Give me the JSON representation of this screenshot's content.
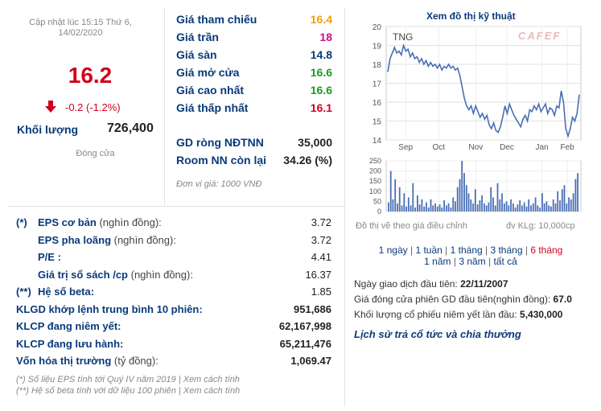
{
  "summary": {
    "updated_label": "Cập nhật lúc 15:15 Thứ 6,",
    "updated_date": "14/02/2020",
    "price": "16.2",
    "change": "-0.2 (-1.2%)",
    "volume_label": "Khối lượng",
    "volume_value": "726,400",
    "status": "Đóng cửa",
    "colors": {
      "price": "#d0021b",
      "down": "#d0021b"
    }
  },
  "prices": {
    "rows": [
      {
        "label": "Giá tham chiếu",
        "value": "16.4",
        "color": "#f39c12"
      },
      {
        "label": "Giá trần",
        "value": "18",
        "color": "#c71585"
      },
      {
        "label": "Giá sàn",
        "value": "14.8",
        "color": "#0a3a7a"
      },
      {
        "label": "Giá mở cửa",
        "value": "16.6",
        "color": "#1a9c1a"
      },
      {
        "label": "Giá cao nhất",
        "value": "16.6",
        "color": "#1a9c1a"
      },
      {
        "label": "Giá thấp nhất",
        "value": "16.1",
        "color": "#d0021b"
      }
    ],
    "foreign": [
      {
        "label": "GD ròng NĐTNN",
        "value": "35,000"
      },
      {
        "label": "Room NN còn lại",
        "value": "34.26 (%)"
      }
    ],
    "unit_note": "Đơn vị giá: 1000 VNĐ"
  },
  "fundamentals": {
    "rows": [
      {
        "prefix": "(*)",
        "label": "EPS cơ bản",
        "suffix": " (nghìn đồng):",
        "value": "3.72",
        "indent": 1,
        "bold": false
      },
      {
        "prefix": "",
        "label": "EPS pha loãng",
        "suffix": " (nghìn đồng):",
        "value": "3.72",
        "indent": 1,
        "bold": false
      },
      {
        "prefix": "",
        "label": "P/E :",
        "suffix": "",
        "value": "4.41",
        "indent": 1,
        "bold": false
      },
      {
        "prefix": "",
        "label": "Giá trị sổ sách /cp",
        "suffix": " (nghìn đồng):",
        "value": "16.37",
        "indent": 1,
        "bold": false
      },
      {
        "prefix": "(**)",
        "label": "Hệ số beta:",
        "suffix": "",
        "value": "1.85",
        "indent": 0,
        "bold": false
      },
      {
        "prefix": "",
        "label": "KLGD khớp lệnh trung bình 10 phiên:",
        "suffix": "",
        "value": "951,686",
        "indent": 0,
        "bold": true
      },
      {
        "prefix": "",
        "label": "KLCP đang niêm yết:",
        "suffix": "",
        "value": "62,167,998",
        "indent": 0,
        "bold": true
      },
      {
        "prefix": "",
        "label": "KLCP đang lưu hành:",
        "suffix": "",
        "value": "65,211,476",
        "indent": 0,
        "bold": true
      },
      {
        "prefix": "",
        "label": "Vốn hóa thị trường",
        "suffix": " (tỷ đồng):",
        "value": "1,069.47",
        "indent": 0,
        "bold": true
      }
    ],
    "note1": "(*) Số liệu EPS tính tới Quý IV năm 2019 | Xem cách tính",
    "note2": "(**) Hệ số beta tính với dữ liệu 100 phiên | Xem cách tính"
  },
  "chart": {
    "title": "Xem đồ thị kỹ thuật",
    "ticker": "TNG",
    "brand": "CAFEF",
    "yticks": [
      "20",
      "19",
      "18",
      "17",
      "16",
      "15",
      "14"
    ],
    "xticks": [
      "Sep",
      "Oct",
      "Nov",
      "Dec",
      "Jan",
      "Feb"
    ],
    "vticks": [
      "250",
      "200",
      "150",
      "100",
      "50",
      "0"
    ],
    "adjusted_note": "Đồ thị vẽ theo giá điều chỉnh",
    "volume_unit": "đv KLg: 10,000cp",
    "line_color": "#4a6fb5",
    "bar_color": "#4a6fb5",
    "ranges": [
      {
        "label": "1 ngày",
        "active": false
      },
      {
        "label": "1 tuần",
        "active": false
      },
      {
        "label": "1 tháng",
        "active": false
      },
      {
        "label": "3 tháng",
        "active": false
      },
      {
        "label": "6 tháng",
        "active": true
      },
      {
        "label": "1 năm",
        "active": false
      },
      {
        "label": "3 năm",
        "active": false
      },
      {
        "label": "tất cả",
        "active": false
      }
    ]
  },
  "chart_data": [
    {
      "type": "line",
      "title": "",
      "xlabel": "",
      "ylabel": "",
      "ylim": [
        14,
        20
      ],
      "series": [
        {
          "values": [
            17.6,
            18.3,
            18.6,
            18.9,
            18.6,
            18.7,
            18.5,
            19.0,
            18.7,
            18.8,
            18.4,
            18.6,
            18.3,
            18.4,
            18.1,
            18.3,
            18.0,
            18.2,
            17.9,
            18.1,
            17.9,
            18.0,
            17.8,
            18.0,
            17.7,
            17.9,
            17.8,
            18.0,
            17.8,
            17.9,
            17.7,
            17.8,
            17.4,
            16.8,
            16.2,
            15.8,
            15.6,
            15.8,
            15.4,
            15.8,
            15.5,
            15.2,
            15.4,
            15.1,
            15.3,
            14.8,
            14.6,
            14.9,
            14.5,
            14.4,
            14.7,
            15.2,
            15.8,
            15.4,
            15.9,
            15.6,
            15.3,
            15.1,
            14.9,
            14.7,
            15.1,
            15.3,
            15.0,
            15.6,
            15.5,
            15.8,
            15.6,
            15.9,
            15.5,
            15.7,
            15.9,
            15.4,
            15.7,
            15.6,
            15.3,
            15.8,
            15.7,
            16.6,
            16.0,
            14.6,
            14.2,
            14.6,
            15.2,
            15.0,
            15.4,
            16.4
          ]
        }
      ]
    },
    {
      "type": "bar",
      "title": "",
      "xlabel": "",
      "ylabel": "",
      "ylim": [
        0,
        250
      ],
      "series": [
        {
          "values": [
            45,
            200,
            60,
            160,
            40,
            120,
            30,
            90,
            25,
            70,
            30,
            140,
            20,
            80,
            35,
            60,
            25,
            45,
            20,
            60,
            30,
            40,
            25,
            35,
            20,
            55,
            30,
            40,
            20,
            70,
            50,
            120,
            160,
            250,
            190,
            130,
            90,
            60,
            40,
            110,
            35,
            55,
            80,
            40,
            30,
            45,
            120,
            70,
            30,
            140,
            60,
            90,
            40,
            50,
            30,
            60,
            40,
            20,
            35,
            55,
            30,
            45,
            25,
            60,
            30,
            40,
            70,
            30,
            20,
            90,
            40,
            50,
            30,
            25,
            60,
            40,
            100,
            55,
            110,
            130,
            40,
            70,
            60,
            90,
            160,
            190
          ]
        }
      ]
    }
  ],
  "info": {
    "rows": [
      {
        "label": "Ngày giao dịch đầu tiên:",
        "value": "22/11/2007"
      },
      {
        "label": "Giá đóng cửa phiên GD đầu tiên(nghìn đồng):",
        "value": "67.0"
      },
      {
        "label": "Khối lượng cổ phiếu niêm yết lần đầu:",
        "value": "5,430,000"
      }
    ],
    "history_link": "Lịch sử trả cổ tức và chia thưởng"
  }
}
